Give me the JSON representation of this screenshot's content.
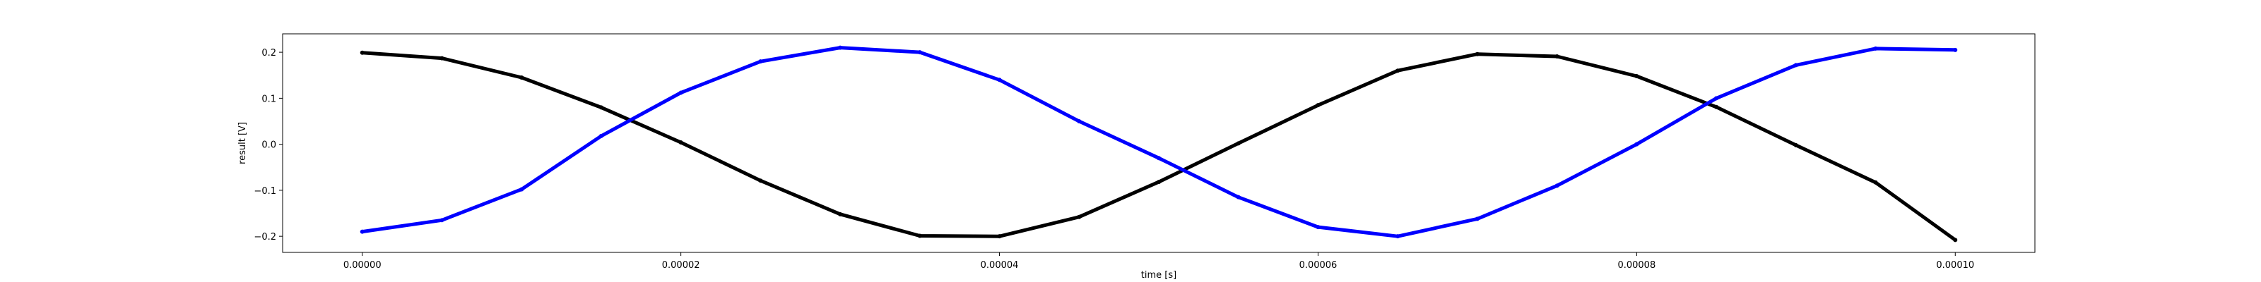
{
  "chart_data": {
    "type": "scatter",
    "xlabel": "time [s]",
    "ylabel": "result [V]",
    "xlim": [
      -5e-06,
      0.000105
    ],
    "ylim": [
      -0.235,
      0.24
    ],
    "x_ticks": [
      0,
      2e-05,
      4e-05,
      6e-05,
      8e-05,
      0.0001
    ],
    "x_tick_labels": [
      "0.00000",
      "0.00002",
      "0.00004",
      "0.00006",
      "0.00008",
      "0.00010"
    ],
    "y_ticks": [
      -0.2,
      -0.1,
      0.0,
      0.1,
      0.2
    ],
    "y_tick_labels": [
      "−0.2",
      "−0.1",
      "0.0",
      "0.1",
      "0.2"
    ],
    "grid": false,
    "series": [
      {
        "color": "#000000",
        "x": [
          0,
          5e-06,
          1e-05,
          1.5e-05,
          2e-05,
          2.5e-05,
          3e-05,
          3.5e-05,
          4e-05,
          4.5e-05,
          5e-05,
          5.5e-05,
          6e-05,
          6.5e-05,
          7e-05,
          7.5e-05,
          8e-05,
          8.5e-05,
          9e-05,
          9.5e-05,
          0.0001
        ],
        "y": [
          0.199,
          0.187,
          0.145,
          0.08,
          0.004,
          -0.079,
          -0.152,
          -0.199,
          -0.2,
          -0.158,
          -0.082,
          0.002,
          0.085,
          0.16,
          0.196,
          0.191,
          0.148,
          0.081,
          -0.002,
          -0.083,
          -0.208
        ]
      },
      {
        "color": "#0000ff",
        "x": [
          0,
          5e-06,
          1e-05,
          1.5e-05,
          2e-05,
          2.5e-05,
          3e-05,
          3.5e-05,
          4e-05,
          4.5e-05,
          5e-05,
          5.5e-05,
          6e-05,
          6.5e-05,
          7e-05,
          7.5e-05,
          8e-05,
          8.5e-05,
          9e-05,
          9.5e-05,
          0.0001
        ],
        "y": [
          -0.19,
          -0.165,
          -0.098,
          0.018,
          0.112,
          0.18,
          0.21,
          0.2,
          0.14,
          0.05,
          -0.03,
          -0.115,
          -0.18,
          -0.2,
          -0.162,
          -0.09,
          0.0,
          0.1,
          0.172,
          0.208,
          0.205
        ]
      }
    ]
  }
}
